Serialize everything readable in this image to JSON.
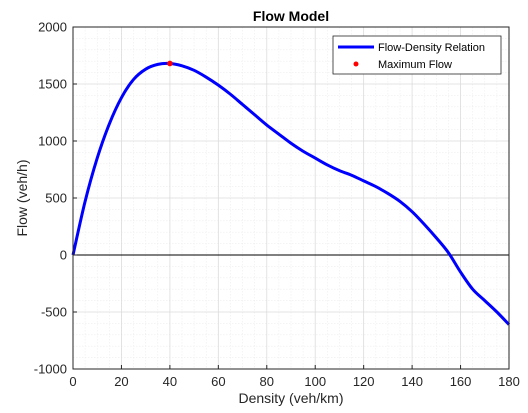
{
  "chart_data": {
    "type": "line",
    "title": "Flow Model",
    "xlabel": "Density (veh/km)",
    "ylabel": "Flow (veh/h)",
    "xlim": [
      0,
      180
    ],
    "ylim": [
      -1000,
      2000
    ],
    "x_ticks": [
      0,
      20,
      40,
      60,
      80,
      100,
      120,
      140,
      160,
      180
    ],
    "y_ticks": [
      -1000,
      -500,
      0,
      500,
      1000,
      1500,
      2000
    ],
    "grid": true,
    "minor_grid": true,
    "legend_position": "top-right",
    "series": [
      {
        "name": "Flow-Density Relation",
        "kind": "line",
        "color": "#0000ff",
        "x": [
          0,
          5,
          10,
          15,
          20,
          25,
          30,
          35,
          40,
          45,
          50,
          55,
          60,
          65,
          70,
          75,
          80,
          85,
          90,
          95,
          100,
          105,
          110,
          115,
          120,
          125,
          130,
          135,
          140,
          145,
          150,
          155,
          160,
          165,
          170,
          175,
          180
        ],
        "y": [
          0,
          470,
          850,
          1150,
          1380,
          1540,
          1630,
          1672,
          1680,
          1660,
          1620,
          1560,
          1490,
          1410,
          1320,
          1230,
          1140,
          1060,
          980,
          910,
          850,
          790,
          740,
          700,
          650,
          600,
          540,
          470,
          380,
          270,
          150,
          20,
          -150,
          -300,
          -400,
          -500,
          -610
        ]
      },
      {
        "name": "Maximum Flow",
        "kind": "point",
        "color": "#ff0000",
        "x": [
          40
        ],
        "y": [
          1680
        ]
      }
    ],
    "reference_line": {
      "y": 0,
      "color": "#000000"
    }
  }
}
